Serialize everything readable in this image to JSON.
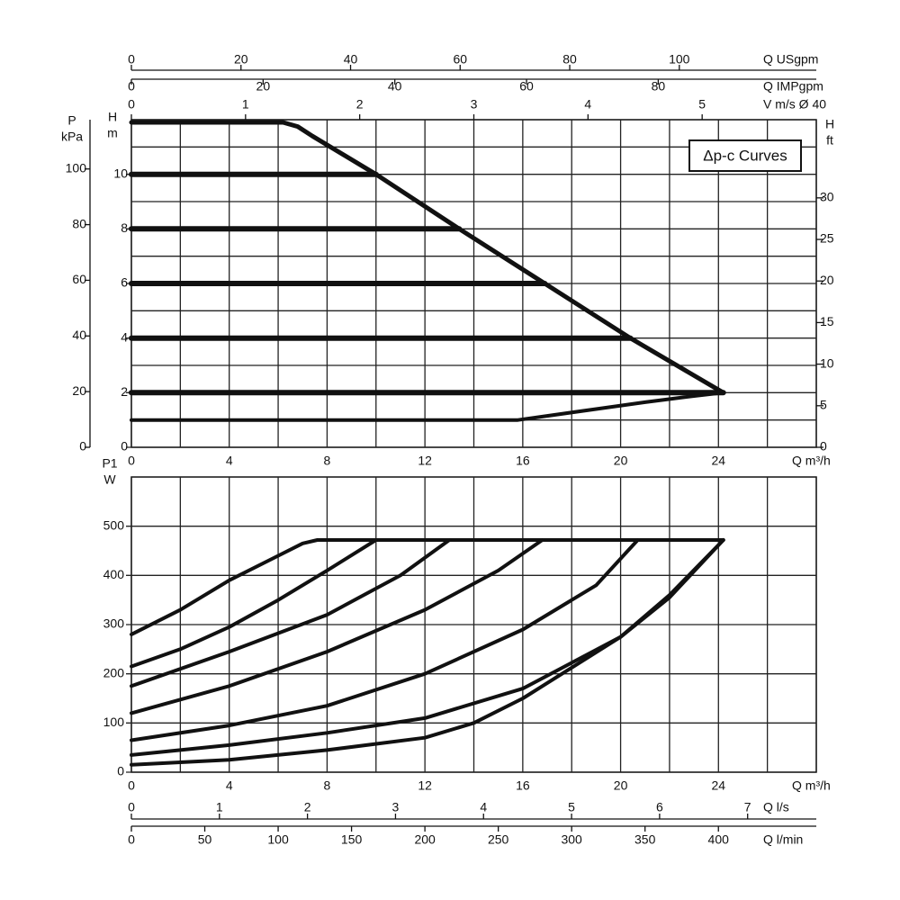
{
  "chart_data": [
    {
      "type": "line",
      "annotation": "Δp-c Curves",
      "xlabel": "Q m³/h",
      "xlim": [
        0,
        28
      ],
      "xticks": [
        0,
        4,
        8,
        12,
        16,
        20,
        24
      ],
      "x_minor_ticks": [
        2,
        6,
        10,
        14,
        18,
        22,
        26,
        28
      ],
      "ylabel": [
        "H",
        "m"
      ],
      "ylim": [
        0,
        12
      ],
      "yticks": [
        0,
        2,
        4,
        6,
        8,
        10
      ],
      "y_minor_ticks": [
        1,
        3,
        5,
        7,
        9,
        11,
        12
      ],
      "y2label": [
        "H",
        "ft"
      ],
      "y2lim": [
        0,
        39.4
      ],
      "y2ticks": [
        0,
        5,
        10,
        15,
        20,
        25,
        30
      ],
      "y3label": [
        "P",
        "kPa"
      ],
      "y3lim": [
        0,
        117.7
      ],
      "y3ticks": [
        0,
        20,
        40,
        60,
        80,
        100
      ],
      "top_axes": [
        {
          "label": "Q USgpm",
          "lim": [
            0,
            125
          ],
          "ticks": [
            0,
            20,
            40,
            60,
            80,
            100
          ]
        },
        {
          "label": "Q IMPgpm",
          "lim": [
            0,
            104
          ],
          "ticks": [
            0,
            20,
            40,
            60,
            80
          ]
        },
        {
          "label": "V m/s Ø 40",
          "lim": [
            0,
            6
          ],
          "ticks": [
            0,
            1,
            2,
            3,
            4,
            5
          ]
        }
      ],
      "series": [
        {
          "color": "#111111",
          "width": 5,
          "x": [
            0,
            6.2,
            6.8,
            7.4,
            10,
            13.4,
            16.9,
            20.4,
            24.2
          ],
          "values": [
            11.9,
            11.9,
            11.75,
            11.4,
            10,
            8,
            6,
            4,
            2
          ]
        },
        {
          "color": "#111111",
          "width": 6,
          "x": [
            0,
            10
          ],
          "values": [
            10,
            10
          ]
        },
        {
          "color": "#111111",
          "width": 6,
          "x": [
            0,
            13.4
          ],
          "values": [
            8,
            8
          ]
        },
        {
          "color": "#111111",
          "width": 6,
          "x": [
            0,
            16.9
          ],
          "values": [
            6,
            6
          ]
        },
        {
          "color": "#111111",
          "width": 6,
          "x": [
            0,
            20.4
          ],
          "values": [
            4,
            4
          ]
        },
        {
          "color": "#111111",
          "width": 6,
          "x": [
            0,
            24.2
          ],
          "values": [
            2,
            2
          ]
        },
        {
          "color": "#111111",
          "width": 4,
          "x": [
            0,
            15.8,
            17,
            19,
            21,
            23,
            24.2
          ],
          "values": [
            1,
            1,
            1.15,
            1.4,
            1.65,
            1.88,
            2
          ]
        }
      ]
    },
    {
      "type": "line",
      "xlabel": "Q m³/h",
      "xlim": [
        0,
        28
      ],
      "xticks": [
        0,
        4,
        8,
        12,
        16,
        20,
        24
      ],
      "x_minor_ticks": [
        2,
        6,
        10,
        14,
        18,
        22,
        26,
        28
      ],
      "ylabel": [
        "P1",
        "W"
      ],
      "ylim": [
        0,
        600
      ],
      "yticks": [
        0,
        100,
        200,
        300,
        400,
        500
      ],
      "y_minor_ticks": [],
      "bottom_axes": [
        {
          "label": "Q l/s",
          "lim": [
            0,
            7.78
          ],
          "ticks": [
            0,
            1,
            2,
            3,
            4,
            5,
            6,
            7
          ]
        },
        {
          "label": "Q l/min",
          "lim": [
            0,
            466.7
          ],
          "ticks": [
            0,
            50,
            100,
            150,
            200,
            250,
            300,
            350,
            400
          ]
        }
      ],
      "series": [
        {
          "color": "#111111",
          "width": 4,
          "x": [
            0,
            2,
            4,
            6,
            7,
            7.6,
            24.2
          ],
          "values": [
            280,
            330,
            390,
            440,
            465,
            472,
            472
          ]
        },
        {
          "color": "#111111",
          "width": 4,
          "x": [
            0,
            2,
            4,
            6,
            8,
            10
          ],
          "values": [
            215,
            250,
            295,
            350,
            410,
            472
          ]
        },
        {
          "color": "#111111",
          "width": 4,
          "x": [
            0,
            4,
            8,
            11,
            13
          ],
          "values": [
            175,
            245,
            320,
            400,
            472
          ]
        },
        {
          "color": "#111111",
          "width": 4,
          "x": [
            0,
            4,
            8,
            12,
            15,
            16.8
          ],
          "values": [
            120,
            175,
            245,
            330,
            410,
            472
          ]
        },
        {
          "color": "#111111",
          "width": 4,
          "x": [
            0,
            4,
            8,
            12,
            16,
            19,
            20.7
          ],
          "values": [
            65,
            95,
            135,
            200,
            290,
            380,
            472
          ]
        },
        {
          "color": "#111111",
          "width": 4,
          "x": [
            0,
            4,
            8,
            12,
            16,
            20,
            22,
            24.2
          ],
          "values": [
            35,
            55,
            80,
            110,
            170,
            275,
            360,
            472
          ]
        },
        {
          "color": "#111111",
          "width": 4,
          "x": [
            0,
            4,
            8,
            12,
            14,
            16,
            20,
            22,
            24.2
          ],
          "values": [
            15,
            25,
            45,
            70,
            100,
            150,
            275,
            355,
            472
          ]
        }
      ]
    }
  ]
}
